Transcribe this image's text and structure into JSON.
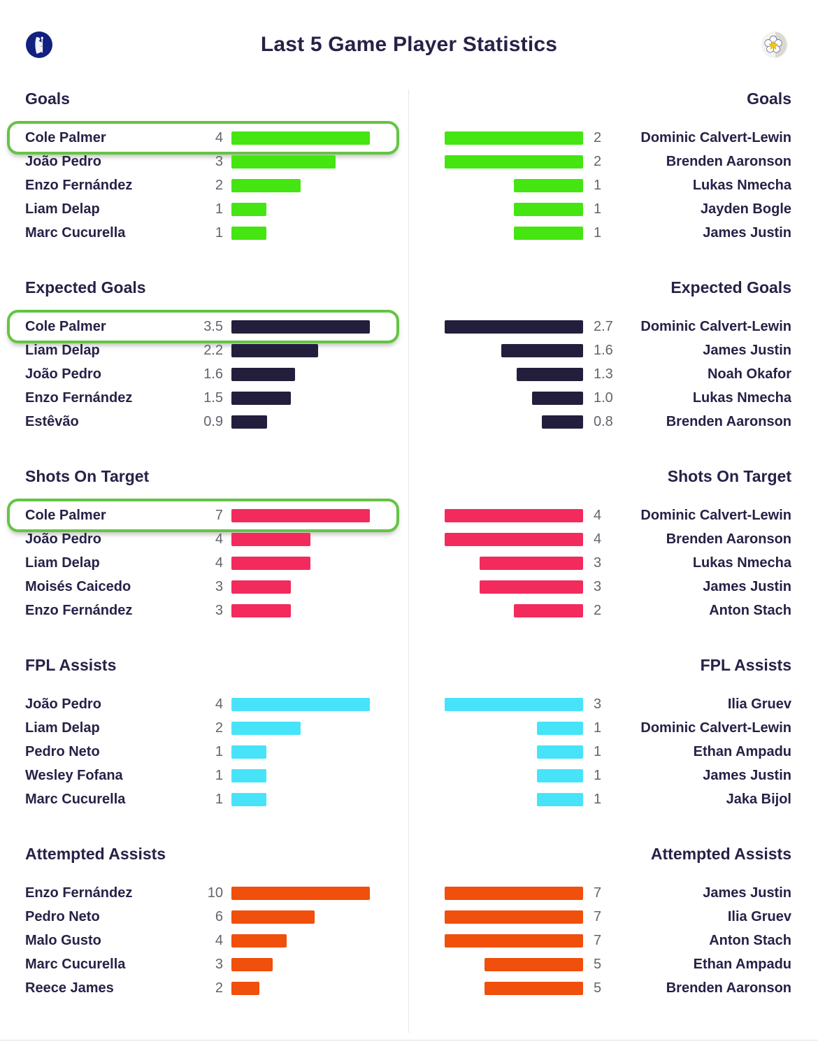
{
  "header": {
    "title": "Last 5 Game Player Statistics",
    "left_badge_icon": "chelsea-club-badge",
    "right_badge_icon": "leeds-united-club-badge"
  },
  "colors": {
    "goals_bar": "#44e511",
    "expected_goals_bar": "#241e3d",
    "shots_on_target_bar": "#f22b5c",
    "fpl_assists_bar": "#47e3f9",
    "attempted_assists_bar": "#f04f0c",
    "highlight_border": "#64c443",
    "heading_text": "#262247",
    "value_text": "#63636e",
    "divider": "#e7e7e9"
  },
  "chart_data": [
    {
      "type": "bar",
      "title": "Goals",
      "bar_color": "#44e511",
      "decimals": 0,
      "left": {
        "categories": [
          "Cole Palmer",
          "João Pedro",
          "Enzo Fernández",
          "Liam Delap",
          "Marc Cucurella"
        ],
        "values": [
          4,
          3,
          2,
          1,
          1
        ],
        "highlight": "Cole Palmer"
      },
      "right": {
        "categories": [
          "Dominic Calvert-Lewin",
          "Brenden Aaronson",
          "Lukas Nmecha",
          "Jayden Bogle",
          "James Justin"
        ],
        "values": [
          2,
          2,
          1,
          1,
          1
        ]
      }
    },
    {
      "type": "bar",
      "title": "Expected Goals",
      "bar_color": "#241e3d",
      "decimals": 1,
      "left": {
        "categories": [
          "Cole Palmer",
          "Liam Delap",
          "João Pedro",
          "Enzo Fernández",
          "Estêvão"
        ],
        "values": [
          3.5,
          2.2,
          1.6,
          1.5,
          0.9
        ],
        "highlight": "Cole Palmer"
      },
      "right": {
        "categories": [
          "Dominic Calvert-Lewin",
          "James Justin",
          "Noah Okafor",
          "Lukas Nmecha",
          "Brenden Aaronson"
        ],
        "values": [
          2.7,
          1.6,
          1.3,
          1.0,
          0.8
        ]
      }
    },
    {
      "type": "bar",
      "title": "Shots On Target",
      "bar_color": "#f22b5c",
      "decimals": 0,
      "left": {
        "categories": [
          "Cole Palmer",
          "João Pedro",
          "Liam Delap",
          "Moisés Caicedo",
          "Enzo Fernández"
        ],
        "values": [
          7,
          4,
          4,
          3,
          3
        ],
        "highlight": "Cole Palmer"
      },
      "right": {
        "categories": [
          "Dominic Calvert-Lewin",
          "Brenden Aaronson",
          "Lukas Nmecha",
          "James Justin",
          "Anton Stach"
        ],
        "values": [
          4,
          4,
          3,
          3,
          2
        ]
      }
    },
    {
      "type": "bar",
      "title": "FPL Assists",
      "bar_color": "#47e3f9",
      "decimals": 0,
      "left": {
        "categories": [
          "João Pedro",
          "Liam Delap",
          "Pedro Neto",
          "Wesley Fofana",
          "Marc Cucurella"
        ],
        "values": [
          4,
          2,
          1,
          1,
          1
        ]
      },
      "right": {
        "categories": [
          "Ilia Gruev",
          "Dominic Calvert-Lewin",
          "Ethan Ampadu",
          "James Justin",
          "Jaka Bijol"
        ],
        "values": [
          3,
          1,
          1,
          1,
          1
        ]
      }
    },
    {
      "type": "bar",
      "title": "Attempted Assists",
      "bar_color": "#f04f0c",
      "decimals": 0,
      "left": {
        "categories": [
          "Enzo Fernández",
          "Pedro Neto",
          "Malo Gusto",
          "Marc Cucurella",
          "Reece James"
        ],
        "values": [
          10,
          6,
          4,
          3,
          2
        ]
      },
      "right": {
        "categories": [
          "James Justin",
          "Ilia Gruev",
          "Anton Stach",
          "Ethan Ampadu",
          "Brenden Aaronson"
        ],
        "values": [
          7,
          7,
          7,
          5,
          5
        ]
      }
    }
  ]
}
